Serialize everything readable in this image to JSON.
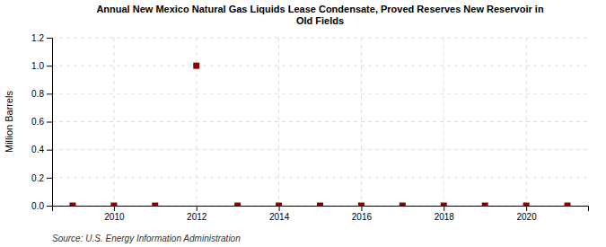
{
  "chart_data": {
    "type": "scatter",
    "title": "Annual New Mexico Natural Gas Liquids Lease Condensate, Proved Reserves New Reservoir in\nOld Fields",
    "ylabel": "Million Barrels",
    "source": "Source: U.S. Energy Information Administration",
    "x": [
      2009,
      2010,
      2011,
      2012,
      2013,
      2014,
      2015,
      2016,
      2017,
      2018,
      2019,
      2020,
      2021
    ],
    "values": [
      0.0,
      0.0,
      0.0,
      1.0,
      0.0,
      0.0,
      0.0,
      0.0,
      0.0,
      0.0,
      0.0,
      0.0,
      0.0
    ],
    "color": "#8b0000",
    "marker": "square",
    "xlim": [
      2008.5,
      2021.5
    ],
    "ylim": [
      0,
      1.2
    ],
    "xticks": [
      2010,
      2012,
      2014,
      2016,
      2018,
      2020
    ],
    "yticks": [
      {
        "value": 0.0,
        "label": "0.0"
      },
      0.2,
      0.4,
      0.6,
      0.8,
      {
        "value": 1.0,
        "label": "1.0"
      },
      1.2
    ],
    "grid": true
  }
}
